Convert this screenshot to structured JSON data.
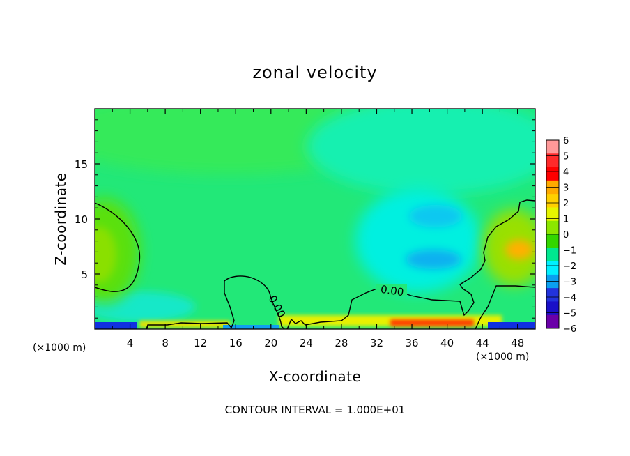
{
  "chart_data": {
    "type": "heatmap",
    "title": "zonal velocity",
    "xlabel": "X-coordinate",
    "ylabel": "Z-coordinate",
    "x_unit_left": "(×1000 m)",
    "x_unit_right": "(×1000 m)",
    "xlim": [
      0,
      50
    ],
    "ylim": [
      0,
      20
    ],
    "x_ticks": [
      4,
      8,
      12,
      16,
      20,
      24,
      28,
      32,
      36,
      40,
      44,
      48
    ],
    "y_ticks": [
      5,
      10,
      15
    ],
    "colorbar": {
      "min": -6,
      "max": 6,
      "ticks": [
        "6",
        "5",
        "4",
        "3",
        "2",
        "1",
        "0",
        "−1",
        "−2",
        "−3",
        "−4",
        "−5",
        "−6"
      ],
      "colors": [
        "#ff9999",
        "#ff2a2a",
        "#ff0000",
        "#ffaa00",
        "#ffd000",
        "#e6f500",
        "#8ce600",
        "#33d600",
        "#00e890",
        "#00f0ff",
        "#0aa0f0",
        "#2233dd",
        "#1a10c8",
        "#6a00a8"
      ]
    },
    "contour_label": "0.00",
    "contour_interval_note": "CONTOUR INTERVAL = 1.000E+01",
    "field_features": [
      {
        "feature": "background",
        "value": 0.3
      },
      {
        "feature": "positive core left",
        "x": 0.5,
        "z": 7,
        "value": 1.6
      },
      {
        "feature": "negative core upper",
        "x": 37.5,
        "z": 10,
        "value": -2.0
      },
      {
        "feature": "negative core lower",
        "x": 38,
        "z": 6,
        "value": -2.3
      },
      {
        "feature": "positive core right",
        "x": 48,
        "z": 7.5,
        "value": 2.8
      },
      {
        "feature": "positive near surface",
        "x": 38,
        "z": 0.3,
        "value": 4.5
      },
      {
        "feature": "negative near surface",
        "x": 0,
        "z": 0,
        "value": -4.0
      }
    ]
  }
}
